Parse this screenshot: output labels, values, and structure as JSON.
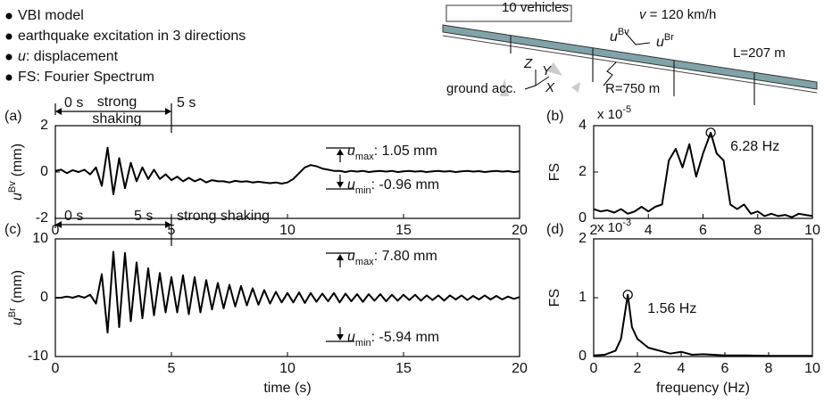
{
  "bullets": [
    {
      "text": "VBI model"
    },
    {
      "text": "earthquake excitation in 3 directions"
    },
    {
      "symbol": "u",
      "text": ": displacement"
    },
    {
      "text": "FS: Fourier Spectrum"
    }
  ],
  "diagram": {
    "vehicles": "10 vehicles",
    "speed_symbol": "v",
    "speed_text": " = 120 km/h",
    "ubv_symbol": "u",
    "ubv_sup": "Bv",
    "ubr_symbol": "u",
    "ubr_sup": "Br",
    "length": "L=207 m",
    "radius": "R=750 m",
    "ground": "ground acc.",
    "axis_x": "X",
    "axis_y": "Y",
    "axis_z": "Z"
  },
  "chart_data": [
    {
      "type": "line",
      "panel_label": "(a)",
      "ylabel": {
        "symbol": "u",
        "sup": "Bv",
        "unit": "(mm)"
      },
      "x": [
        0,
        0.25,
        0.5,
        0.75,
        1,
        1.25,
        1.5,
        1.75,
        2,
        2.25,
        2.5,
        2.75,
        3,
        3.25,
        3.5,
        3.75,
        4,
        4.25,
        4.5,
        4.75,
        5,
        5.25,
        5.5,
        5.75,
        6,
        6.25,
        6.5,
        6.75,
        7,
        7.25,
        7.5,
        7.75,
        8,
        8.25,
        8.5,
        8.75,
        9,
        9.25,
        9.5,
        9.75,
        10,
        10.25,
        10.5,
        10.75,
        11,
        11.25,
        11.5,
        11.75,
        12,
        12.25,
        12.5,
        12.75,
        13,
        13.25,
        13.5,
        13.75,
        14,
        14.25,
        14.5,
        14.75,
        15,
        15.25,
        15.5,
        15.75,
        16,
        16.25,
        16.5,
        16.75,
        17,
        17.25,
        17.5,
        17.75,
        18,
        18.25,
        18.5,
        18.75,
        19,
        19.25,
        19.5,
        19.75,
        20
      ],
      "series": [
        {
          "color": "#000000",
          "values": [
            0.05,
            0.1,
            -0.05,
            0.08,
            0,
            0.1,
            -0.1,
            0.2,
            -0.6,
            1.05,
            -0.96,
            0.6,
            -0.7,
            0.4,
            -0.4,
            0.2,
            -0.3,
            0.1,
            -0.3,
            -0.1,
            -0.35,
            -0.2,
            -0.4,
            -0.25,
            -0.4,
            -0.3,
            -0.45,
            -0.35,
            -0.4,
            -0.4,
            -0.45,
            -0.38,
            -0.42,
            -0.4,
            -0.45,
            -0.42,
            -0.45,
            -0.48,
            -0.45,
            -0.5,
            -0.45,
            -0.3,
            -0.05,
            0.2,
            0.3,
            0.25,
            0.15,
            0.1,
            0.05,
            0.05,
            0,
            0.05,
            0.02,
            0.05,
            0,
            0.03,
            0.05,
            0.02,
            0.05,
            0,
            0.03,
            0.05,
            0.02,
            0.04,
            0,
            0.03,
            0.05,
            0.02,
            0.04,
            0,
            0.03,
            0.05,
            0.02,
            0.04,
            0,
            0.03,
            0.05,
            0.02,
            0.04,
            0,
            0.03
          ]
        }
      ],
      "xlim": [
        0,
        20
      ],
      "xticks": [
        0,
        5,
        10,
        15,
        20
      ],
      "ylim": [
        -2,
        2
      ],
      "yticks": [
        -2,
        0,
        2
      ],
      "window": {
        "start_label": "0 s",
        "end_label": "5 s",
        "text": [
          "strong",
          "shaking"
        ]
      },
      "umax": {
        "symbol": "u",
        "sub": "max",
        "text": ": 1.05 mm"
      },
      "umin": {
        "symbol": "u",
        "sub": "min",
        "text": ": -0.96 mm"
      }
    },
    {
      "type": "line",
      "panel_label": "(b)",
      "ylabel": {
        "text": "FS"
      },
      "scale_label": "x 10",
      "scale_exp": "-5",
      "x": [
        2,
        2.25,
        2.5,
        2.75,
        3,
        3.25,
        3.5,
        3.75,
        4,
        4.25,
        4.5,
        4.75,
        5,
        5.25,
        5.5,
        5.75,
        6,
        6.28,
        6.5,
        6.75,
        7,
        7.25,
        7.5,
        7.75,
        8,
        8.25,
        8.5,
        8.75,
        9,
        9.25,
        9.5,
        9.75,
        10
      ],
      "series": [
        {
          "color": "#000000",
          "values": [
            0.4,
            0.3,
            0.35,
            0.25,
            0.4,
            0.2,
            0.3,
            0.5,
            0.3,
            0.5,
            0.6,
            2.5,
            3,
            2.2,
            3.2,
            1.8,
            2.8,
            3.7,
            2.8,
            2.5,
            0.6,
            0.4,
            0.6,
            0.2,
            0.3,
            0.1,
            0.2,
            0.1,
            0.15,
            0.05,
            0.2,
            0.15,
            0.1
          ]
        }
      ],
      "xlim": [
        2,
        10
      ],
      "xticks": [
        2,
        4,
        6,
        8,
        10
      ],
      "ylim": [
        0,
        4
      ],
      "yticks": [
        0,
        2,
        4
      ],
      "peak_label": "6.28 Hz"
    },
    {
      "type": "line",
      "panel_label": "(c)",
      "ylabel": {
        "symbol": "u",
        "sup": "Br",
        "unit": "(mm)"
      },
      "xlabel": "time (s)",
      "x": [
        0,
        0.25,
        0.5,
        0.75,
        1,
        1.25,
        1.5,
        1.75,
        2,
        2.25,
        2.5,
        2.75,
        3,
        3.25,
        3.5,
        3.75,
        4,
        4.25,
        4.5,
        4.75,
        5,
        5.25,
        5.5,
        5.75,
        6,
        6.25,
        6.5,
        6.75,
        7,
        7.25,
        7.5,
        7.75,
        8,
        8.25,
        8.5,
        8.75,
        9,
        9.25,
        9.5,
        9.75,
        10,
        10.25,
        10.5,
        10.75,
        11,
        11.25,
        11.5,
        11.75,
        12,
        12.25,
        12.5,
        12.75,
        13,
        13.25,
        13.5,
        13.75,
        14,
        14.25,
        14.5,
        14.75,
        15,
        15.25,
        15.5,
        15.75,
        16,
        16.25,
        16.5,
        16.75,
        17,
        17.25,
        17.5,
        17.75,
        18,
        18.25,
        18.5,
        18.75,
        19,
        19.25,
        19.5,
        19.75,
        20
      ],
      "series": [
        {
          "color": "#000000",
          "values": [
            0,
            0,
            0.2,
            0,
            0.3,
            0,
            0.5,
            -1,
            4,
            -5.94,
            7.8,
            -5,
            7.6,
            -4,
            6,
            -3.5,
            5,
            -3,
            4.2,
            -2.5,
            3.5,
            -2.5,
            3.8,
            -2.8,
            3.5,
            -2.5,
            3,
            -2,
            2.5,
            -1.8,
            2.2,
            -1.5,
            2,
            -1.3,
            1.6,
            -1.2,
            1.3,
            -1,
            1,
            -0.8,
            0.8,
            -0.8,
            0.9,
            -0.9,
            0.8,
            -0.7,
            0.7,
            -0.6,
            0.8,
            -0.8,
            0.7,
            -0.6,
            0.6,
            -0.7,
            0.6,
            -0.5,
            0.6,
            -0.6,
            0.5,
            -0.5,
            0.5,
            -0.4,
            0.5,
            -0.5,
            0.4,
            -0.4,
            0.4,
            -0.5,
            0.4,
            -0.3,
            0.4,
            -0.4,
            0.3,
            -0.3,
            0.4,
            -0.3,
            0.3,
            -0.3,
            0.2,
            -0.2,
            0.1
          ]
        }
      ],
      "xlim": [
        0,
        20
      ],
      "xticks": [
        0,
        5,
        10,
        15,
        20
      ],
      "ylim": [
        -10,
        10
      ],
      "yticks": [
        -10,
        0,
        10
      ],
      "window": {
        "start_label": "0 s",
        "end_label": "5 s",
        "text": [
          "strong shaking"
        ]
      },
      "umax": {
        "symbol": "u",
        "sub": "max",
        "text": ": 7.80 mm"
      },
      "umin": {
        "symbol": "u",
        "sub": "min",
        "text": ": -5.94 mm"
      }
    },
    {
      "type": "line",
      "panel_label": "(d)",
      "ylabel": {
        "text": "FS"
      },
      "xlabel": "frequency (Hz)",
      "scale_label": "x 10",
      "scale_exp": "-3",
      "x": [
        0,
        0.5,
        1,
        1.25,
        1.56,
        1.75,
        2,
        2.5,
        3,
        3.5,
        4,
        4.5,
        5,
        6,
        7,
        8,
        9,
        10
      ],
      "series": [
        {
          "color": "#000000",
          "values": [
            0.02,
            0.03,
            0.1,
            0.3,
            1.05,
            0.5,
            0.3,
            0.15,
            0.1,
            0.05,
            0.08,
            0.03,
            0.04,
            0.02,
            0.02,
            0.01,
            0.01,
            0.01
          ]
        }
      ],
      "xlim": [
        0,
        10
      ],
      "xticks": [
        0,
        2,
        4,
        6,
        8,
        10
      ],
      "ylim": [
        0,
        2
      ],
      "yticks": [
        0,
        1,
        2
      ],
      "peak_label": "1.56 Hz"
    }
  ]
}
